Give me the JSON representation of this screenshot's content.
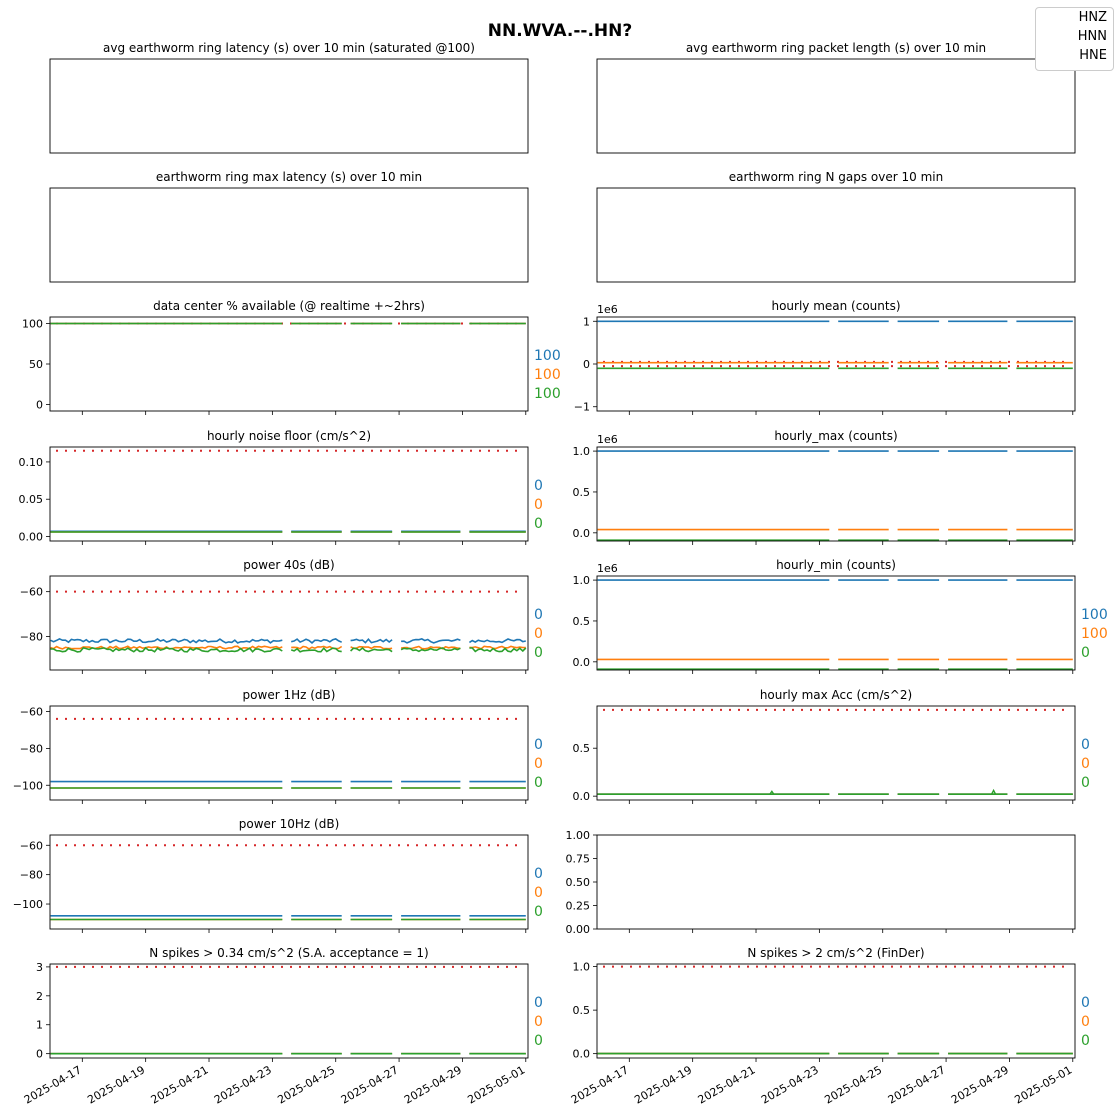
{
  "title": "NN.WVA.--.HN?",
  "legend": {
    "items": [
      "HNZ",
      "HNN",
      "HNE"
    ]
  },
  "colors": {
    "HNZ": "#1f77b4",
    "HNN": "#ff7f0e",
    "HNE": "#2ca02c",
    "threshold": "#d62728"
  },
  "x_axis": {
    "start": "2025-04-16",
    "end": "2025-05-01",
    "tick_labels": [
      "2025-04-17",
      "2025-04-19",
      "2025-04-21",
      "2025-04-23",
      "2025-04-25",
      "2025-04-27",
      "2025-04-29",
      "2025-05-01"
    ]
  },
  "chart_data": [
    {
      "id": "avg-latency",
      "type": "line",
      "title": "avg earthworm ring latency (s)   over 10 min (saturated @100)",
      "series": [],
      "side_labels": []
    },
    {
      "id": "avg-packet-length",
      "type": "line",
      "title": "avg earthworm ring packet length (s)   over 10 min",
      "series": [],
      "side_labels": []
    },
    {
      "id": "max-latency",
      "type": "line",
      "title": "earthworm ring max latency (s)   over 10 min",
      "series": [],
      "side_labels": []
    },
    {
      "id": "n-gaps",
      "type": "line",
      "title": "earthworm ring N gaps   over 10 min",
      "series": [],
      "side_labels": []
    },
    {
      "id": "data-available",
      "type": "line",
      "title": "data center % available (@ realtime +~2hrs)",
      "ylim": [
        -8,
        108
      ],
      "yticks": [
        0,
        50,
        100
      ],
      "ytick_labels": [
        "0",
        "50",
        "100"
      ],
      "threshold": 100,
      "series": [
        {
          "name": "HNZ",
          "value": 100
        },
        {
          "name": "HNN",
          "value": 100
        },
        {
          "name": "HNE",
          "value": 100
        }
      ],
      "side_labels": [
        "100",
        "100",
        "100"
      ]
    },
    {
      "id": "hourly-mean",
      "type": "line",
      "title": "hourly mean (counts)",
      "ylim": [
        -1.1,
        1.1
      ],
      "yticks": [
        -1,
        0,
        1
      ],
      "ytick_labels": [
        "−1",
        "0",
        "1"
      ],
      "offset_label": "1e6",
      "thresholds": [
        0.05,
        -0.05
      ],
      "series": [
        {
          "name": "HNZ",
          "value": 1.0
        },
        {
          "name": "HNN",
          "value": 0.03
        },
        {
          "name": "HNE",
          "value": -0.1
        }
      ],
      "side_labels": []
    },
    {
      "id": "noise-floor",
      "type": "line",
      "title": "hourly noise floor (cm/s^2)",
      "ylim": [
        -0.006,
        0.12
      ],
      "yticks": [
        0.0,
        0.05,
        0.1
      ],
      "ytick_labels": [
        "0.00",
        "0.05",
        "0.10"
      ],
      "threshold": 0.115,
      "series": [
        {
          "name": "HNZ",
          "value": 0.007
        },
        {
          "name": "HNN",
          "value": 0.006
        },
        {
          "name": "HNE",
          "value": 0.006
        }
      ],
      "side_labels": [
        "0",
        "0",
        "0"
      ]
    },
    {
      "id": "hourly-max",
      "type": "line",
      "title": "hourly_max (counts)",
      "ylim": [
        -0.1,
        1.05
      ],
      "yticks": [
        0.0,
        0.5,
        1.0
      ],
      "ytick_labels": [
        "0.0",
        "0.5",
        "1.0"
      ],
      "offset_label": "1e6",
      "series": [
        {
          "name": "HNZ",
          "value": 1.0
        },
        {
          "name": "HNN",
          "value": 0.04
        },
        {
          "name": "HNE",
          "value": -0.09
        }
      ],
      "side_labels": []
    },
    {
      "id": "power-40s",
      "type": "line",
      "title": "power 40s (dB)",
      "ylim": [
        -95,
        -53
      ],
      "yticks": [
        -60,
        -80
      ],
      "ytick_labels": [
        "−60",
        "−80"
      ],
      "threshold": -60,
      "series": [
        {
          "name": "HNZ",
          "value": -82,
          "noise": 0.9
        },
        {
          "name": "HNN",
          "value": -85,
          "noise": 0.6
        },
        {
          "name": "HNE",
          "value": -86,
          "noise": 0.9
        }
      ],
      "side_labels": [
        "0",
        "0",
        "0"
      ]
    },
    {
      "id": "hourly-min",
      "type": "line",
      "title": "hourly_min (counts)",
      "ylim": [
        -0.1,
        1.05
      ],
      "yticks": [
        0.0,
        0.5,
        1.0
      ],
      "ytick_labels": [
        "0.0",
        "0.5",
        "1.0"
      ],
      "offset_label": "1e6",
      "series": [
        {
          "name": "HNZ",
          "value": 1.0
        },
        {
          "name": "HNN",
          "value": 0.03
        },
        {
          "name": "HNE",
          "value": -0.09
        }
      ],
      "side_labels": [
        "100",
        "100",
        "0"
      ]
    },
    {
      "id": "power-1hz",
      "type": "line",
      "title": "power 1Hz (dB)",
      "ylim": [
        -108,
        -57
      ],
      "yticks": [
        -60,
        -80,
        -100
      ],
      "ytick_labels": [
        "−60",
        "−80",
        "−100"
      ],
      "threshold": -64,
      "series": [
        {
          "name": "HNZ",
          "value": -98
        },
        {
          "name": "HNN",
          "value": -101.5
        },
        {
          "name": "HNE",
          "value": -101.5
        }
      ],
      "side_labels": [
        "0",
        "0",
        "0"
      ]
    },
    {
      "id": "max-acc",
      "type": "line",
      "title": "hourly max Acc (cm/s^2)",
      "ylim": [
        -0.04,
        0.94
      ],
      "yticks": [
        0.0,
        0.5
      ],
      "ytick_labels": [
        "0.0",
        "0.5"
      ],
      "threshold": 0.9,
      "series": [
        {
          "name": "HNZ",
          "value": 0.02
        },
        {
          "name": "HNN",
          "value": 0.02
        },
        {
          "name": "HNE",
          "value": 0.02,
          "spikes": [
            [
              "2025-04-21",
              0.05
            ],
            [
              "2025-04-28",
              0.06
            ]
          ]
        }
      ],
      "side_labels": [
        "0",
        "0",
        "0"
      ]
    },
    {
      "id": "power-10hz",
      "type": "line",
      "title": "power 10Hz (dB)",
      "ylim": [
        -117,
        -53
      ],
      "yticks": [
        -60,
        -80,
        -100
      ],
      "ytick_labels": [
        "−60",
        "−80",
        "−100"
      ],
      "threshold": -60,
      "series": [
        {
          "name": "HNZ",
          "value": -108
        },
        {
          "name": "HNN",
          "value": -110.5
        },
        {
          "name": "HNE",
          "value": -110.5
        }
      ],
      "side_labels": [
        "0",
        "0",
        "0"
      ]
    },
    {
      "id": "empty-panel",
      "type": "line",
      "title": "",
      "ylim": [
        0,
        1
      ],
      "yticks": [
        0,
        0.25,
        0.5,
        0.75,
        1.0
      ],
      "ytick_labels": [
        "0.00",
        "0.25",
        "0.50",
        "0.75",
        "1.00"
      ],
      "series": [],
      "side_labels": []
    },
    {
      "id": "spikes-sa",
      "type": "line",
      "title": "N spikes > 0.34 cm/s^2 (S.A. acceptance = 1)",
      "ylim": [
        -0.15,
        3.1
      ],
      "yticks": [
        0,
        1,
        2,
        3
      ],
      "ytick_labels": [
        "0",
        "1",
        "2",
        "3"
      ],
      "threshold": 3,
      "series": [
        {
          "name": "HNZ",
          "value": 0
        },
        {
          "name": "HNN",
          "value": 0
        },
        {
          "name": "HNE",
          "value": 0
        }
      ],
      "side_labels": [
        "0",
        "0",
        "0"
      ]
    },
    {
      "id": "spikes-finder",
      "type": "line",
      "title": "N spikes > 2 cm/s^2 (FinDer)",
      "ylim": [
        -0.05,
        1.03
      ],
      "yticks": [
        0.0,
        0.5,
        1.0
      ],
      "ytick_labels": [
        "0.0",
        "0.5",
        "1.0"
      ],
      "threshold": 1,
      "series": [
        {
          "name": "HNZ",
          "value": 0
        },
        {
          "name": "HNN",
          "value": 0
        },
        {
          "name": "HNE",
          "value": 0
        }
      ],
      "side_labels": [
        "0",
        "0",
        "0"
      ]
    }
  ]
}
